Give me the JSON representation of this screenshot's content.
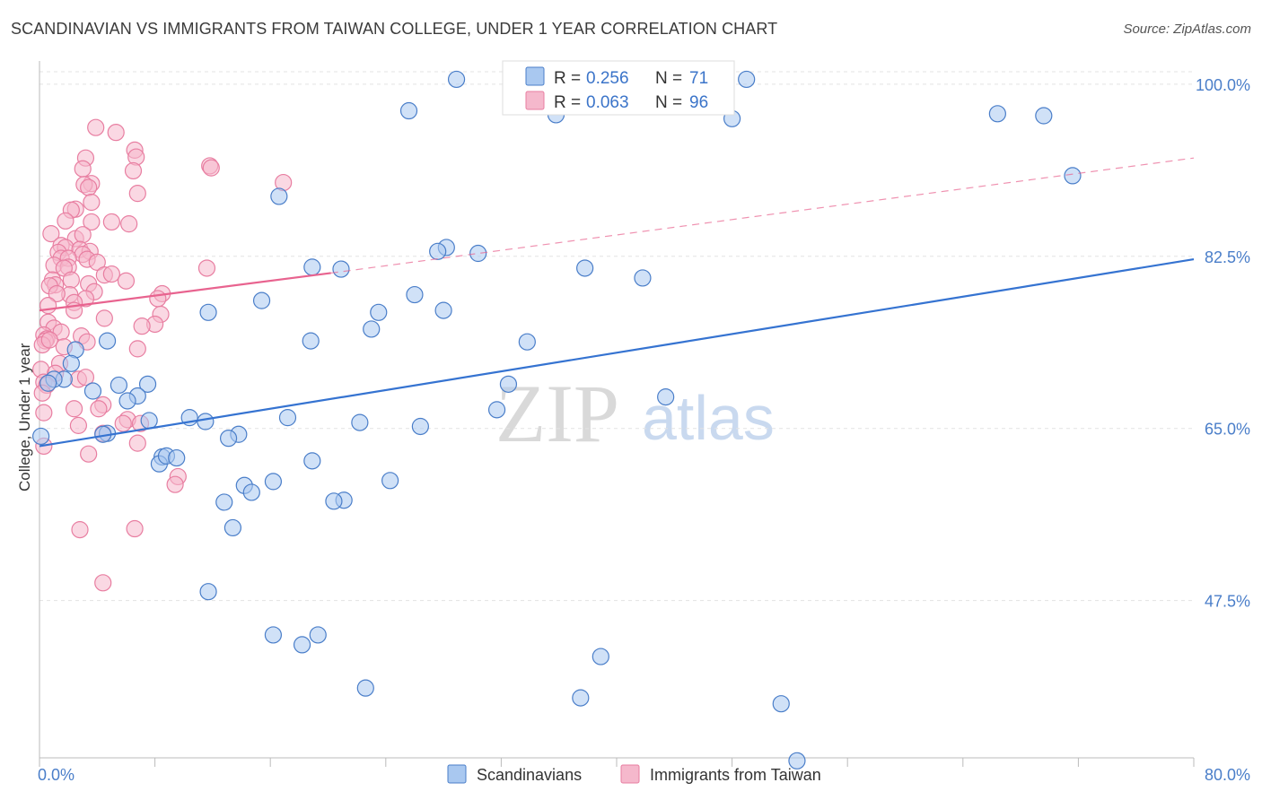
{
  "title": "SCANDINAVIAN VS IMMIGRANTS FROM TAIWAN COLLEGE, UNDER 1 YEAR CORRELATION CHART",
  "source": "Source: ZipAtlas.com",
  "colors": {
    "blue_fill": "#a9c8f0",
    "blue_stroke": "#4a7ec9",
    "blue_line": "#3573d1",
    "pink_fill": "#f5b8cc",
    "pink_stroke": "#e87ea1",
    "pink_line": "#e8638f",
    "grid": "#e3e3e3",
    "tick_text": "#4a7ec9"
  },
  "legend": {
    "r_label": "R =",
    "n_label": "N =",
    "entries": [
      {
        "r": "0.256",
        "n": "71",
        "series": "blue"
      },
      {
        "r": "0.063",
        "n": "96",
        "series": "pink"
      }
    ]
  },
  "bottom_legend": [
    "Scandinavians",
    "Immigrants from Taiwan"
  ],
  "watermark": {
    "zip": "ZIP",
    "atlas": "atlas"
  },
  "chart_data": {
    "type": "scatter",
    "title": "SCANDINAVIAN VS IMMIGRANTS FROM TAIWAN COLLEGE, UNDER 1 YEAR CORRELATION CHART",
    "xlabel": "",
    "ylabel": "College, Under 1 year",
    "xlim": [
      0,
      80
    ],
    "ylim": [
      31.5,
      102
    ],
    "x_tick_labels": [
      {
        "value": 0,
        "label": "0.0%"
      },
      {
        "value": 80,
        "label": "80.0%"
      }
    ],
    "x_minor_ticks": [
      0,
      8,
      16,
      24,
      32,
      40,
      48,
      56,
      64,
      72,
      80
    ],
    "y_ticks": [
      {
        "value": 100,
        "label": "100.0%"
      },
      {
        "value": 82.5,
        "label": "82.5%"
      },
      {
        "value": 65,
        "label": "65.0%"
      },
      {
        "value": 47.5,
        "label": "47.5%"
      }
    ],
    "series": [
      {
        "name": "Scandinavians",
        "color": "blue",
        "r": 0.256,
        "n": 71,
        "trend": {
          "x0": 0,
          "y0": 63.2,
          "x1": 80,
          "y1": 82.2,
          "dashed_to": null
        },
        "points": [
          [
            28.9,
            100.5
          ],
          [
            49.0,
            100.5
          ],
          [
            25.6,
            97.3
          ],
          [
            35.8,
            96.9
          ],
          [
            48.0,
            96.5
          ],
          [
            66.4,
            97.0
          ],
          [
            69.6,
            96.8
          ],
          [
            71.6,
            90.7
          ],
          [
            16.6,
            88.6
          ],
          [
            28.2,
            83.4
          ],
          [
            30.4,
            82.8
          ],
          [
            18.9,
            81.4
          ],
          [
            20.9,
            81.2
          ],
          [
            37.8,
            81.3
          ],
          [
            41.8,
            80.3
          ],
          [
            26.0,
            78.6
          ],
          [
            15.4,
            78.0
          ],
          [
            11.7,
            76.8
          ],
          [
            23.5,
            76.8
          ],
          [
            28.0,
            77.0
          ],
          [
            23.0,
            75.1
          ],
          [
            18.8,
            73.9
          ],
          [
            33.8,
            73.8
          ],
          [
            2.5,
            73.0
          ],
          [
            2.2,
            71.6
          ],
          [
            1.7,
            70.0
          ],
          [
            1.0,
            70.0
          ],
          [
            5.5,
            69.4
          ],
          [
            7.5,
            69.5
          ],
          [
            6.8,
            68.3
          ],
          [
            6.1,
            67.8
          ],
          [
            3.7,
            68.8
          ],
          [
            32.5,
            69.5
          ],
          [
            43.4,
            68.2
          ],
          [
            31.7,
            66.9
          ],
          [
            10.4,
            66.1
          ],
          [
            11.5,
            65.7
          ],
          [
            17.2,
            66.1
          ],
          [
            22.2,
            65.6
          ],
          [
            26.4,
            65.2
          ],
          [
            0.1,
            64.2
          ],
          [
            4.7,
            64.5
          ],
          [
            4.4,
            64.4
          ],
          [
            13.8,
            64.4
          ],
          [
            13.1,
            64.0
          ],
          [
            8.5,
            62.1
          ],
          [
            8.3,
            61.4
          ],
          [
            8.8,
            62.2
          ],
          [
            9.5,
            62.0
          ],
          [
            18.9,
            61.7
          ],
          [
            24.3,
            59.7
          ],
          [
            14.2,
            59.2
          ],
          [
            16.2,
            59.6
          ],
          [
            14.7,
            58.5
          ],
          [
            12.8,
            57.5
          ],
          [
            21.1,
            57.7
          ],
          [
            20.4,
            57.6
          ],
          [
            13.4,
            54.9
          ],
          [
            11.7,
            48.4
          ],
          [
            16.2,
            44.0
          ],
          [
            19.3,
            44.0
          ],
          [
            18.2,
            43.0
          ],
          [
            38.9,
            41.8
          ],
          [
            22.6,
            38.6
          ],
          [
            37.5,
            37.6
          ],
          [
            51.4,
            37.0
          ],
          [
            52.5,
            31.2
          ],
          [
            27.6,
            83.0
          ],
          [
            4.7,
            73.9
          ],
          [
            7.6,
            65.8
          ],
          [
            0.6,
            69.6
          ]
        ]
      },
      {
        "name": "Immigrants from Taiwan",
        "color": "pink",
        "r": 0.063,
        "n": 96,
        "trend": {
          "x0": 0,
          "y0": 77.0,
          "x1": 20.2,
          "y1": 80.8,
          "dashed_to": {
            "x": 80,
            "y": 92.5
          }
        },
        "points": [
          [
            3.9,
            95.6
          ],
          [
            5.3,
            95.1
          ],
          [
            6.6,
            93.3
          ],
          [
            6.7,
            92.6
          ],
          [
            3.2,
            92.5
          ],
          [
            11.8,
            91.7
          ],
          [
            11.9,
            91.5
          ],
          [
            6.5,
            91.2
          ],
          [
            3.0,
            91.4
          ],
          [
            3.6,
            89.9
          ],
          [
            3.1,
            89.8
          ],
          [
            16.9,
            90.0
          ],
          [
            3.4,
            89.5
          ],
          [
            6.8,
            88.9
          ],
          [
            3.6,
            88.0
          ],
          [
            2.5,
            87.3
          ],
          [
            2.2,
            87.2
          ],
          [
            3.6,
            86.0
          ],
          [
            5.0,
            86.0
          ],
          [
            1.8,
            86.1
          ],
          [
            6.2,
            85.8
          ],
          [
            0.8,
            84.8
          ],
          [
            2.5,
            84.3
          ],
          [
            3.0,
            84.7
          ],
          [
            1.5,
            83.6
          ],
          [
            1.8,
            83.4
          ],
          [
            2.8,
            83.2
          ],
          [
            3.5,
            83.0
          ],
          [
            3.0,
            82.7
          ],
          [
            1.3,
            82.9
          ],
          [
            1.5,
            82.3
          ],
          [
            2.0,
            82.3
          ],
          [
            3.3,
            82.2
          ],
          [
            4.0,
            81.9
          ],
          [
            1.0,
            81.6
          ],
          [
            2.0,
            81.4
          ],
          [
            1.7,
            81.3
          ],
          [
            11.6,
            81.3
          ],
          [
            4.5,
            80.6
          ],
          [
            5.0,
            80.7
          ],
          [
            6.0,
            80.0
          ],
          [
            2.2,
            80.1
          ],
          [
            0.9,
            80.1
          ],
          [
            1.1,
            79.6
          ],
          [
            3.4,
            79.7
          ],
          [
            0.7,
            79.5
          ],
          [
            3.8,
            78.9
          ],
          [
            8.5,
            78.7
          ],
          [
            2.1,
            78.6
          ],
          [
            3.2,
            78.2
          ],
          [
            1.2,
            78.7
          ],
          [
            8.2,
            78.2
          ],
          [
            2.4,
            77.8
          ],
          [
            0.6,
            77.5
          ],
          [
            2.4,
            77.0
          ],
          [
            8.4,
            76.6
          ],
          [
            4.5,
            76.2
          ],
          [
            0.6,
            75.8
          ],
          [
            8.0,
            75.6
          ],
          [
            7.1,
            75.4
          ],
          [
            1.0,
            75.2
          ],
          [
            1.5,
            74.8
          ],
          [
            0.3,
            74.5
          ],
          [
            2.9,
            74.4
          ],
          [
            0.5,
            74.1
          ],
          [
            0.4,
            73.9
          ],
          [
            3.3,
            73.8
          ],
          [
            0.2,
            73.5
          ],
          [
            1.7,
            73.3
          ],
          [
            6.8,
            73.1
          ],
          [
            1.4,
            71.6
          ],
          [
            0.1,
            71.0
          ],
          [
            1.1,
            70.6
          ],
          [
            2.7,
            70.0
          ],
          [
            3.2,
            70.2
          ],
          [
            0.3,
            69.7
          ],
          [
            0.5,
            69.4
          ],
          [
            0.2,
            68.6
          ],
          [
            4.4,
            67.4
          ],
          [
            4.1,
            67.0
          ],
          [
            2.4,
            67.0
          ],
          [
            0.3,
            66.6
          ],
          [
            6.1,
            65.9
          ],
          [
            5.8,
            65.5
          ],
          [
            2.7,
            65.3
          ],
          [
            7.0,
            65.5
          ],
          [
            4.4,
            64.5
          ],
          [
            6.8,
            63.5
          ],
          [
            0.3,
            63.2
          ],
          [
            3.4,
            62.4
          ],
          [
            9.6,
            60.1
          ],
          [
            9.4,
            59.3
          ],
          [
            2.8,
            54.7
          ],
          [
            6.6,
            54.8
          ],
          [
            4.4,
            49.3
          ],
          [
            0.7,
            74.0
          ]
        ]
      }
    ]
  }
}
